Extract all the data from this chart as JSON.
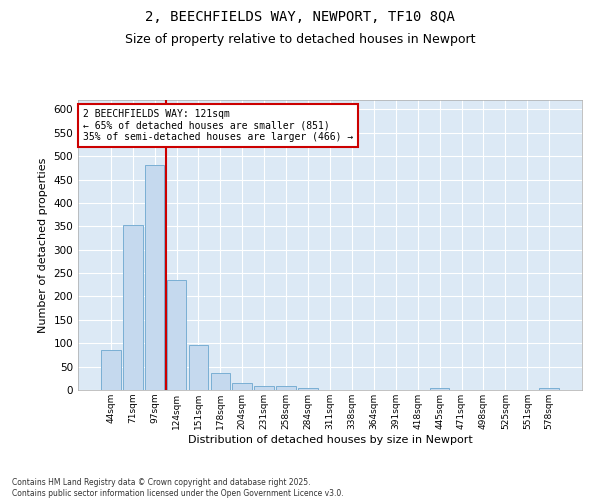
{
  "title": "2, BEECHFIELDS WAY, NEWPORT, TF10 8QA",
  "subtitle": "Size of property relative to detached houses in Newport",
  "xlabel": "Distribution of detached houses by size in Newport",
  "ylabel": "Number of detached properties",
  "categories": [
    "44sqm",
    "71sqm",
    "97sqm",
    "124sqm",
    "151sqm",
    "178sqm",
    "204sqm",
    "231sqm",
    "258sqm",
    "284sqm",
    "311sqm",
    "338sqm",
    "364sqm",
    "391sqm",
    "418sqm",
    "445sqm",
    "471sqm",
    "498sqm",
    "525sqm",
    "551sqm",
    "578sqm"
  ],
  "values": [
    85,
    352,
    481,
    236,
    97,
    36,
    16,
    8,
    8,
    5,
    0,
    0,
    0,
    0,
    0,
    5,
    0,
    0,
    0,
    0,
    5
  ],
  "bar_color": "#c5d9ee",
  "bar_edge_color": "#7aafd4",
  "bg_color": "#dce9f5",
  "grid_color": "#ffffff",
  "vline_color": "#cc0000",
  "vline_pos": 2.5,
  "annotation_text": "2 BEECHFIELDS WAY: 121sqm\n← 65% of detached houses are smaller (851)\n35% of semi-detached houses are larger (466) →",
  "annotation_box_color": "#ffffff",
  "annotation_box_edge": "#cc0000",
  "ylim": [
    0,
    620
  ],
  "yticks": [
    0,
    50,
    100,
    150,
    200,
    250,
    300,
    350,
    400,
    450,
    500,
    550,
    600
  ],
  "footer": "Contains HM Land Registry data © Crown copyright and database right 2025.\nContains public sector information licensed under the Open Government Licence v3.0.",
  "title_fontsize": 10,
  "subtitle_fontsize": 9,
  "fig_bg": "#ffffff"
}
